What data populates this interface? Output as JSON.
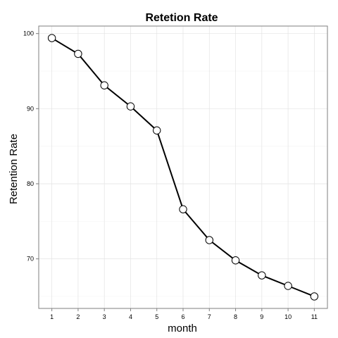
{
  "chart_data": {
    "type": "line",
    "title": "Retetion Rate",
    "xlabel": "month",
    "ylabel": "Retention Rate",
    "x": [
      1,
      2,
      3,
      4,
      5,
      6,
      7,
      8,
      9,
      10,
      11
    ],
    "values": [
      99.4,
      97.3,
      93.1,
      90.3,
      87.1,
      76.6,
      72.5,
      69.8,
      67.8,
      66.4,
      65.0
    ],
    "x_ticks": [
      "1",
      "2",
      "3",
      "4",
      "5",
      "6",
      "7",
      "8",
      "9",
      "10",
      "11"
    ],
    "y_ticks": [
      "70",
      "80",
      "90",
      "100"
    ],
    "xlim": [
      0.5,
      11.5
    ],
    "ylim": [
      63.4,
      101.0
    ],
    "grid": true,
    "legend": "none"
  }
}
